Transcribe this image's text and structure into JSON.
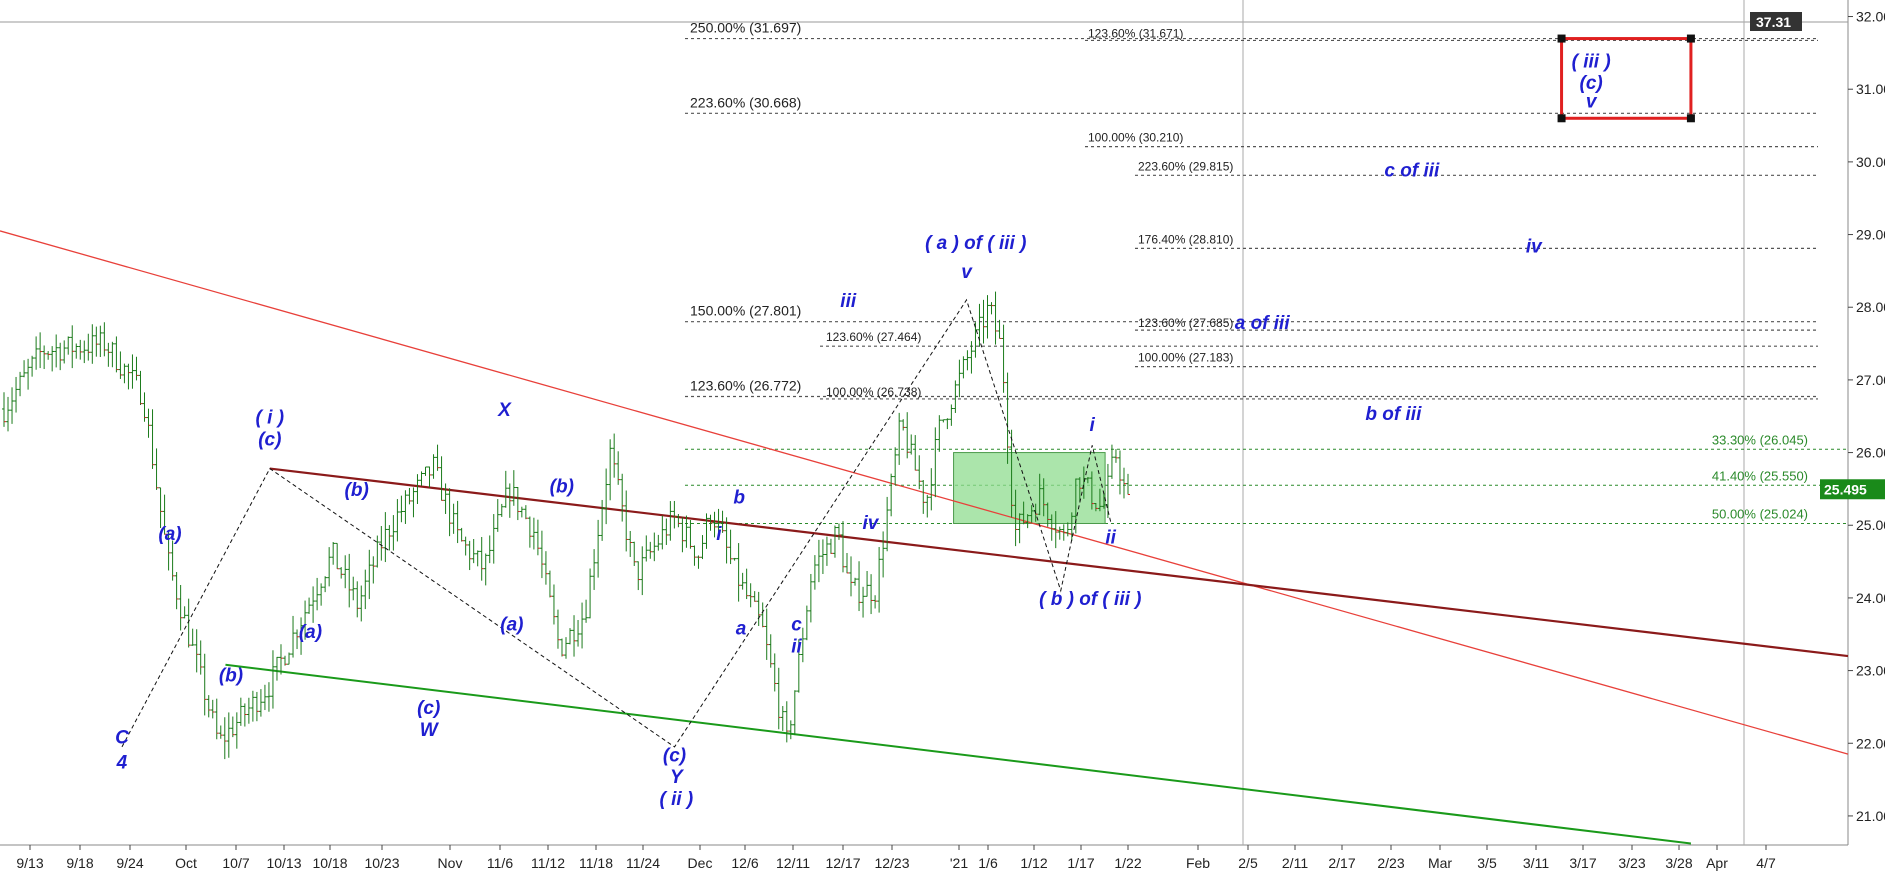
{
  "chart_data": {
    "type": "candlestick",
    "title": "",
    "x_ticks": [
      "9/13",
      "9/18",
      "9/24",
      "Oct",
      "10/7",
      "10/13",
      "10/18",
      "10/23",
      "Nov",
      "11/6",
      "11/12",
      "11/18",
      "11/24",
      "Dec",
      "12/6",
      "12/11",
      "12/17",
      "12/23",
      "'21",
      "1/6",
      "1/12",
      "1/17",
      "1/22",
      "Feb",
      "2/5",
      "2/11",
      "2/17",
      "2/23",
      "Mar",
      "3/5",
      "3/11",
      "3/17",
      "3/23",
      "3/28",
      "Apr",
      "4/7"
    ],
    "y_ticks": [
      "21.000",
      "22.000",
      "23.000",
      "24.000",
      "25.000",
      "26.000",
      "27.000",
      "28.000",
      "29.000",
      "30.000",
      "31.000",
      "32.000"
    ],
    "ylim": [
      20.6,
      32.2
    ],
    "price_path_anchors": [
      [
        0,
        26.6
      ],
      [
        3,
        27.4
      ],
      [
        8,
        27.5
      ],
      [
        11,
        26.8
      ],
      [
        13,
        24.5
      ],
      [
        17,
        22.0
      ],
      [
        21,
        22.8
      ],
      [
        26,
        24.6
      ],
      [
        28,
        23.9
      ],
      [
        30,
        24.8
      ],
      [
        31,
        25.1
      ],
      [
        34,
        25.8
      ],
      [
        36,
        24.8
      ],
      [
        38,
        24.4
      ],
      [
        40,
        25.5
      ],
      [
        42,
        24.9
      ],
      [
        44,
        23.3
      ],
      [
        46,
        23.8
      ],
      [
        48,
        26.0
      ],
      [
        50,
        24.3
      ],
      [
        53,
        25.1
      ],
      [
        55,
        24.6
      ],
      [
        56,
        25.2
      ],
      [
        58,
        24.3
      ],
      [
        60,
        23.6
      ],
      [
        62,
        22.0
      ],
      [
        64,
        24.4
      ],
      [
        66,
        24.9
      ],
      [
        67,
        24.1
      ],
      [
        69,
        24.1
      ],
      [
        71,
        26.4
      ],
      [
        73,
        25.3
      ],
      [
        74,
        26.3
      ],
      [
        77,
        27.6
      ],
      [
        78,
        28.0
      ],
      [
        79,
        27.4
      ],
      [
        80,
        24.9
      ],
      [
        82,
        25.4
      ],
      [
        84,
        24.8
      ],
      [
        85,
        25.7
      ],
      [
        87,
        25.2
      ],
      [
        88,
        26.0
      ],
      [
        89,
        25.3
      ]
    ],
    "price_path_x_range": [
      0,
      89
    ],
    "fib_levels": [
      {
        "label": "250.00% (31.697)",
        "value": 31.697
      },
      {
        "label": "223.60% (30.668)",
        "value": 30.668
      },
      {
        "label": "150.00% (27.801)",
        "value": 27.801
      },
      {
        "label": "123.60% (26.772)",
        "value": 26.772
      },
      {
        "label": "123.60% (27.464)",
        "value": 27.464
      },
      {
        "label": "100.00% (26.738)",
        "value": 26.738
      },
      {
        "label": "123.60% (31.671)",
        "value": 31.671
      },
      {
        "label": "100.00% (30.210)",
        "value": 30.21
      },
      {
        "label": "223.60% (29.815)",
        "value": 29.815
      },
      {
        "label": "176.40% (28.810)",
        "value": 28.81
      },
      {
        "label": "123.60% (27.685)",
        "value": 27.685
      },
      {
        "label": "100.00% (27.183)",
        "value": 27.183
      }
    ],
    "retracements": [
      {
        "label": "33.30% (26.045)",
        "value": 26.045
      },
      {
        "label": "41.40% (25.550)",
        "value": 25.55
      },
      {
        "label": "50.00% (25.024)",
        "value": 25.024
      }
    ],
    "trendlines": [
      {
        "name": "red",
        "from": [
          0.0,
          29.05
        ],
        "to": [
          1.0,
          21.85
        ]
      },
      {
        "name": "maroon",
        "from": [
          0.146,
          25.78
        ],
        "to": [
          1.0,
          23.2
        ]
      },
      {
        "name": "green",
        "from": [
          0.122,
          23.08
        ],
        "to": [
          0.915,
          20.62
        ]
      }
    ],
    "wave_labels": [
      {
        "text": "C",
        "x": 0.066,
        "y": 22.0
      },
      {
        "text": "4",
        "x": 0.066,
        "y": 21.65
      },
      {
        "text": "(a)",
        "x": 0.092,
        "y": 24.8
      },
      {
        "text": "( i )",
        "x": 0.146,
        "y": 26.4
      },
      {
        "text": "(c)",
        "x": 0.146,
        "y": 26.1
      },
      {
        "text": "(b)",
        "x": 0.125,
        "y": 22.85
      },
      {
        "text": "(a)",
        "x": 0.168,
        "y": 23.45
      },
      {
        "text": "(b)",
        "x": 0.193,
        "y": 25.4
      },
      {
        "text": "(c)",
        "x": 0.232,
        "y": 22.4
      },
      {
        "text": "W",
        "x": 0.232,
        "y": 22.1
      },
      {
        "text": "X",
        "x": 0.273,
        "y": 26.5
      },
      {
        "text": "(a)",
        "x": 0.277,
        "y": 23.55
      },
      {
        "text": "(b)",
        "x": 0.304,
        "y": 25.45
      },
      {
        "text": "(c)",
        "x": 0.365,
        "y": 21.75
      },
      {
        "text": "Y",
        "x": 0.366,
        "y": 21.45
      },
      {
        "text": "( ii )",
        "x": 0.366,
        "y": 21.15
      },
      {
        "text": "i",
        "x": 0.389,
        "y": 24.8
      },
      {
        "text": "b",
        "x": 0.4,
        "y": 25.3
      },
      {
        "text": "a",
        "x": 0.401,
        "y": 23.5
      },
      {
        "text": "c",
        "x": 0.431,
        "y": 23.55
      },
      {
        "text": "ii",
        "x": 0.431,
        "y": 23.25
      },
      {
        "text": "iii",
        "x": 0.459,
        "y": 28.0
      },
      {
        "text": "iv",
        "x": 0.471,
        "y": 24.95
      },
      {
        "text": "( a ) of ( iii )",
        "x": 0.528,
        "y": 28.8
      },
      {
        "text": "v",
        "x": 0.523,
        "y": 28.4
      },
      {
        "text": "i",
        "x": 0.591,
        "y": 26.3
      },
      {
        "text": "ii",
        "x": 0.601,
        "y": 24.75
      },
      {
        "text": "( b ) of ( iii )",
        "x": 0.59,
        "y": 23.9
      },
      {
        "text": "( iii )",
        "x": 0.861,
        "y": 31.3
      },
      {
        "text": "(c)",
        "x": 0.861,
        "y": 31.0
      },
      {
        "text": "v",
        "x": 0.861,
        "y": 30.75
      },
      {
        "text": "c of iii",
        "x": 0.764,
        "y": 29.8
      },
      {
        "text": "iv",
        "x": 0.83,
        "y": 28.75
      },
      {
        "text": "a of iii",
        "x": 0.683,
        "y": 27.7
      },
      {
        "text": "b of iii",
        "x": 0.754,
        "y": 26.45
      }
    ],
    "last_price": "25.495",
    "marker_price": "37.31",
    "green_box": {
      "x1": 0.516,
      "x2": 0.598,
      "y_top": 26.0,
      "y_bottom": 25.024
    },
    "red_box": {
      "x1": 0.845,
      "x2": 0.915,
      "y_top": 31.697,
      "y_bottom": 30.6
    },
    "grid": false,
    "legend": "none"
  }
}
